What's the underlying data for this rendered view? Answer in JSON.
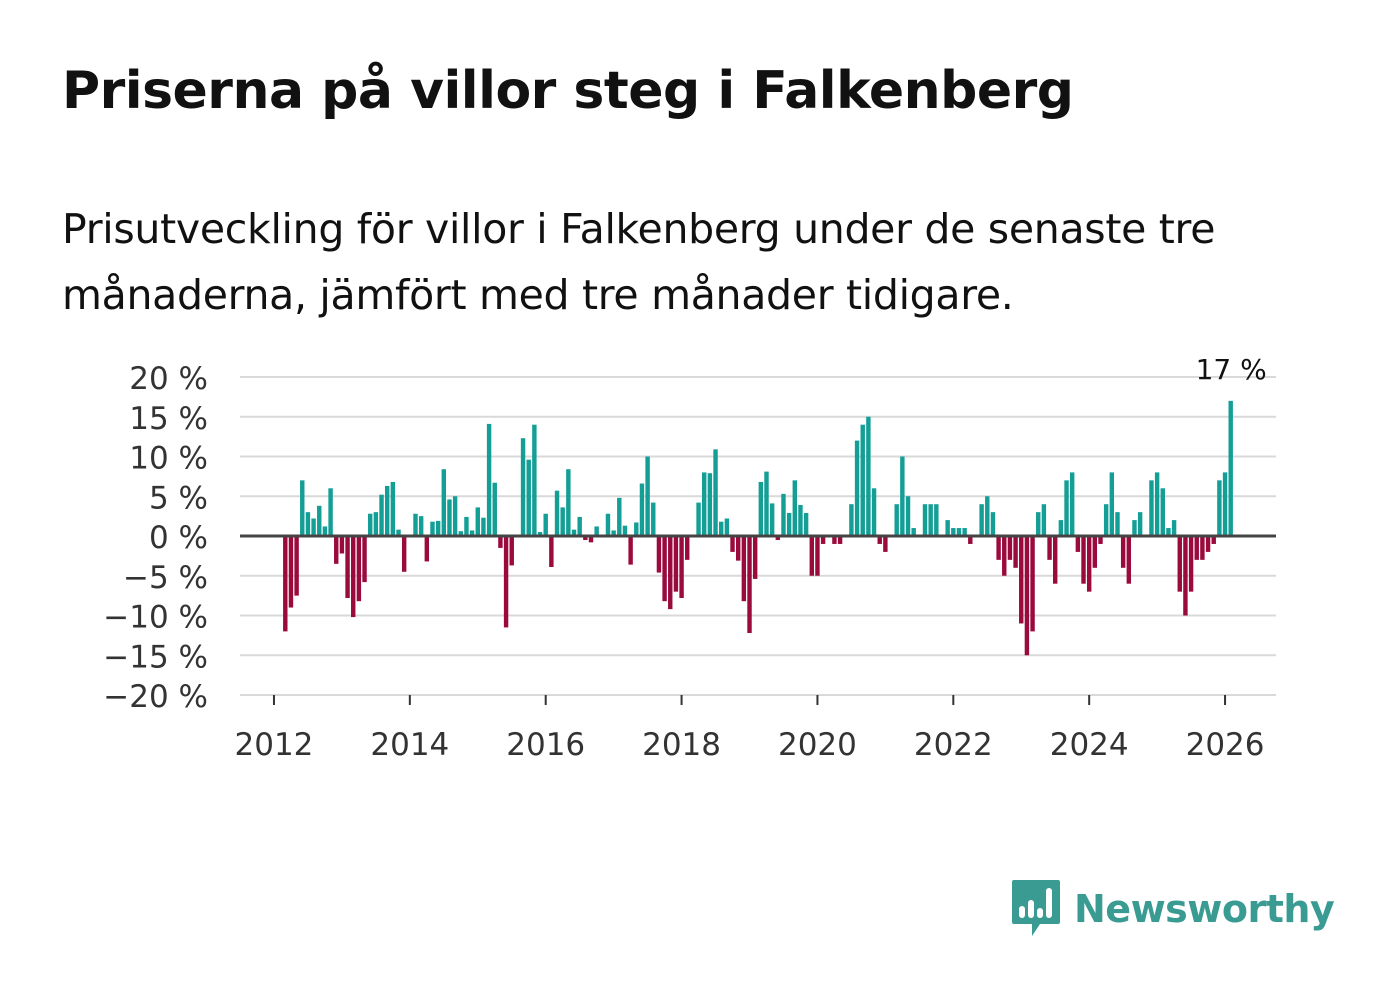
{
  "title": "Priserna på villor steg i Falkenberg",
  "subtitle": "Prisutveckling för villor i Falkenberg under de senaste tre månaderna, jämfört med tre månader tidigare.",
  "brand": {
    "name": "Newsworthy",
    "color": "#3a9b93",
    "icon": "newsworthy-bar-chart-bubble-icon"
  },
  "colors": {
    "positive": "#139e96",
    "negative": "#9a0a3c",
    "grid": "#d9d9d9",
    "zero": "#444444"
  },
  "chart_data": {
    "type": "bar",
    "title": "Priserna på villor steg i Falkenberg",
    "xlabel": "",
    "ylabel": "",
    "ylim": [
      -20,
      20
    ],
    "yticks": [
      20,
      15,
      10,
      5,
      0,
      -5,
      -10,
      -15,
      -20
    ],
    "ytick_labels": [
      "20 %",
      "15 %",
      "10 %",
      "5 %",
      "0 %",
      "−5 %",
      "−10 %",
      "−15 %",
      "−20 %"
    ],
    "xticks": [
      2012,
      2014,
      2016,
      2018,
      2020,
      2022,
      2024,
      2026
    ],
    "xtick_labels": [
      "2012",
      "2014",
      "2016",
      "2018",
      "2020",
      "2022",
      "2024",
      "2026"
    ],
    "xlim": [
      2011.5,
      2026.75
    ],
    "start": 2012.0,
    "step_months": 1,
    "annotation": {
      "text": "17 %",
      "target": "last"
    },
    "values": [
      0,
      0,
      -12,
      -9,
      -7.5,
      7,
      3,
      2.2,
      3.8,
      1.2,
      6,
      -3.5,
      -2.2,
      -7.8,
      -10.2,
      -8.2,
      -5.8,
      2.8,
      3,
      5.2,
      6.3,
      6.8,
      0.8,
      -4.5,
      0,
      2.8,
      2.5,
      -3.2,
      1.8,
      1.9,
      8.4,
      4.6,
      5,
      0.6,
      2.4,
      0.7,
      3.6,
      2.3,
      14.1,
      6.7,
      -1.5,
      -11.5,
      -3.7,
      0,
      12.3,
      9.6,
      14,
      0.5,
      2.8,
      -3.9,
      5.7,
      3.6,
      8.4,
      0.8,
      2.4,
      -0.5,
      -0.8,
      1.2,
      0,
      2.8,
      0.7,
      4.8,
      1.3,
      -3.6,
      1.7,
      6.6,
      10,
      4.2,
      -4.6,
      -8.2,
      -9.2,
      -7,
      -7.8,
      -3,
      0,
      4.2,
      8,
      7.9,
      10.9,
      1.8,
      2.2,
      -2,
      -3.1,
      -8.2,
      -12.2,
      -5.4,
      6.8,
      8.1,
      4.1,
      -0.5,
      5.3,
      2.9,
      7,
      3.9,
      2.9,
      -5,
      -5,
      -1,
      0,
      -1,
      -1,
      0,
      4,
      12,
      14,
      15,
      6,
      -1,
      -2,
      0,
      4,
      10,
      5,
      1,
      0,
      4,
      4,
      4,
      0,
      2,
      1,
      1,
      1,
      -1,
      0,
      4,
      5,
      3,
      -3,
      -5,
      -3,
      -4,
      -11,
      -15,
      -12,
      3,
      4,
      -3,
      -6,
      2,
      7,
      8,
      -2,
      -6,
      -7,
      -4,
      -1,
      4,
      8,
      3,
      -4,
      -6,
      2,
      3,
      0,
      7,
      8,
      6,
      1,
      2,
      -7,
      -10,
      -7,
      -3,
      -3,
      -2,
      -1,
      7,
      8,
      17
    ]
  }
}
